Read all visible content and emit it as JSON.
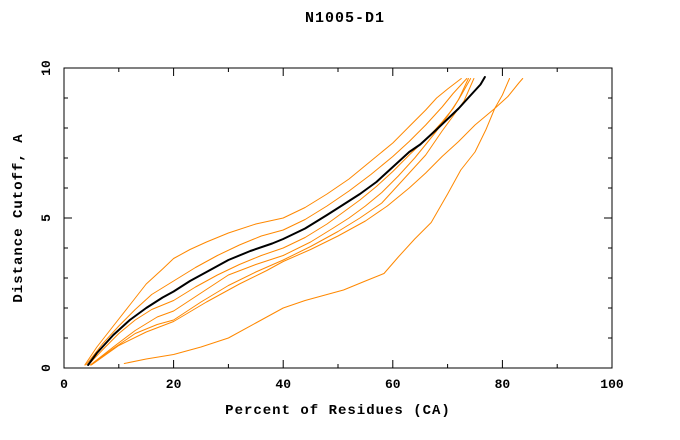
{
  "chart_data": {
    "type": "line",
    "title": "N1005-D1",
    "xlabel": "Percent of Residues (CA)",
    "ylabel": "Distance Cutoff, A",
    "xlim": [
      0,
      100
    ],
    "ylim": [
      0,
      10
    ],
    "x_major_ticks": [
      0,
      20,
      40,
      60,
      80,
      100
    ],
    "x_minor_ticks": [
      10,
      30,
      50,
      70,
      90
    ],
    "y_major_ticks": [
      0,
      5,
      10
    ],
    "y_minor_ticks": [
      1,
      2,
      3,
      4,
      6,
      7,
      8,
      9
    ],
    "grid": false,
    "legend": "none",
    "colors": {
      "background": "#ffffff",
      "axis": "#000000",
      "model_line": "#ff8800",
      "highlight_line": "#000000"
    },
    "series": [
      {
        "name": "orange-model-1-top",
        "color_role": "model_line",
        "stroke_width": 1,
        "points": [
          [
            3.8,
            0.1
          ],
          [
            6,
            0.7
          ],
          [
            9,
            1.4
          ],
          [
            12,
            2.1
          ],
          [
            15,
            2.8
          ],
          [
            18,
            3.3
          ],
          [
            20,
            3.65
          ],
          [
            23,
            3.95
          ],
          [
            26,
            4.2
          ],
          [
            30,
            4.5
          ],
          [
            35,
            4.8
          ],
          [
            40,
            5.0
          ],
          [
            44,
            5.35
          ],
          [
            48,
            5.8
          ],
          [
            52,
            6.3
          ],
          [
            56,
            6.9
          ],
          [
            60,
            7.5
          ],
          [
            63,
            8.05
          ],
          [
            66,
            8.6
          ],
          [
            68,
            9.0
          ],
          [
            70,
            9.3
          ],
          [
            72.5,
            9.65
          ]
        ]
      },
      {
        "name": "orange-model-2",
        "color_role": "model_line",
        "stroke_width": 1,
        "points": [
          [
            4,
            0.1
          ],
          [
            7,
            0.8
          ],
          [
            10,
            1.4
          ],
          [
            13,
            1.95
          ],
          [
            16,
            2.45
          ],
          [
            20,
            2.9
          ],
          [
            24,
            3.35
          ],
          [
            28,
            3.75
          ],
          [
            32,
            4.1
          ],
          [
            36,
            4.4
          ],
          [
            40,
            4.6
          ],
          [
            44,
            4.95
          ],
          [
            48,
            5.4
          ],
          [
            52,
            5.9
          ],
          [
            56,
            6.45
          ],
          [
            60,
            7.05
          ],
          [
            63,
            7.55
          ],
          [
            66,
            8.1
          ],
          [
            69,
            8.7
          ],
          [
            71,
            9.15
          ],
          [
            73.5,
            9.65
          ]
        ]
      },
      {
        "name": "orange-model-3-hugs-black",
        "color_role": "model_line",
        "stroke_width": 1,
        "points": [
          [
            4.4,
            0.1
          ],
          [
            7,
            0.6
          ],
          [
            10,
            1.15
          ],
          [
            13,
            1.6
          ],
          [
            16,
            1.95
          ],
          [
            20,
            2.25
          ],
          [
            24,
            2.7
          ],
          [
            28,
            3.1
          ],
          [
            32,
            3.45
          ],
          [
            36,
            3.75
          ],
          [
            40,
            4.0
          ],
          [
            44,
            4.35
          ],
          [
            48,
            4.8
          ],
          [
            51,
            5.2
          ],
          [
            54,
            5.6
          ],
          [
            57,
            6.05
          ],
          [
            60,
            6.55
          ],
          [
            63,
            7.1
          ],
          [
            65,
            7.45
          ],
          [
            67,
            7.8
          ],
          [
            69,
            8.2
          ],
          [
            71,
            8.65
          ],
          [
            72.5,
            9.1
          ],
          [
            74.2,
            9.65
          ]
        ]
      },
      {
        "name": "orange-model-4",
        "color_role": "model_line",
        "stroke_width": 1,
        "points": [
          [
            4.8,
            0.1
          ],
          [
            9,
            0.7
          ],
          [
            13,
            1.25
          ],
          [
            17,
            1.7
          ],
          [
            20,
            1.9
          ],
          [
            25,
            2.5
          ],
          [
            30,
            3.1
          ],
          [
            35,
            3.45
          ],
          [
            40,
            3.75
          ],
          [
            45,
            4.2
          ],
          [
            49,
            4.65
          ],
          [
            52,
            5.0
          ],
          [
            55,
            5.4
          ],
          [
            58,
            5.85
          ],
          [
            61,
            6.4
          ],
          [
            64,
            7.0
          ],
          [
            66,
            7.45
          ],
          [
            68,
            7.9
          ],
          [
            70,
            8.4
          ],
          [
            72,
            8.95
          ],
          [
            73.8,
            9.65
          ]
        ]
      },
      {
        "name": "orange-model-5",
        "color_role": "model_line",
        "stroke_width": 1,
        "points": [
          [
            4.8,
            0.1
          ],
          [
            9,
            0.65
          ],
          [
            13,
            1.15
          ],
          [
            17,
            1.45
          ],
          [
            20,
            1.6
          ],
          [
            25,
            2.2
          ],
          [
            30,
            2.75
          ],
          [
            35,
            3.2
          ],
          [
            40,
            3.6
          ],
          [
            45,
            4.05
          ],
          [
            50,
            4.55
          ],
          [
            54,
            5.0
          ],
          [
            58,
            5.5
          ],
          [
            62,
            6.3
          ],
          [
            66,
            7.1
          ],
          [
            69,
            7.9
          ],
          [
            71,
            8.4
          ],
          [
            73,
            8.9
          ],
          [
            74.8,
            9.65
          ]
        ]
      },
      {
        "name": "orange-model-6-wide-right",
        "color_role": "model_line",
        "stroke_width": 1,
        "points": [
          [
            5,
            0.1
          ],
          [
            10,
            0.75
          ],
          [
            15,
            1.2
          ],
          [
            20,
            1.55
          ],
          [
            26,
            2.2
          ],
          [
            32,
            2.8
          ],
          [
            37,
            3.25
          ],
          [
            40,
            3.55
          ],
          [
            45,
            3.95
          ],
          [
            50,
            4.4
          ],
          [
            55,
            4.9
          ],
          [
            59,
            5.4
          ],
          [
            63,
            6.0
          ],
          [
            66,
            6.5
          ],
          [
            69,
            7.05
          ],
          [
            72,
            7.55
          ],
          [
            75,
            8.1
          ],
          [
            78.6,
            8.65
          ],
          [
            81,
            9.05
          ],
          [
            83,
            9.5
          ],
          [
            83.7,
            9.65
          ]
        ]
      },
      {
        "name": "orange-model-7-low-outlier",
        "color_role": "model_line",
        "stroke_width": 1,
        "points": [
          [
            11,
            0.15
          ],
          [
            15,
            0.3
          ],
          [
            20,
            0.45
          ],
          [
            25,
            0.7
          ],
          [
            30,
            1.0
          ],
          [
            35,
            1.5
          ],
          [
            40,
            2.0
          ],
          [
            44,
            2.25
          ],
          [
            48,
            2.45
          ],
          [
            51,
            2.6
          ],
          [
            55,
            2.9
          ],
          [
            58.4,
            3.15
          ],
          [
            61,
            3.7
          ],
          [
            64,
            4.3
          ],
          [
            67,
            4.85
          ],
          [
            70,
            5.8
          ],
          [
            72.4,
            6.6
          ],
          [
            75,
            7.2
          ],
          [
            77,
            7.95
          ],
          [
            78.6,
            8.65
          ],
          [
            80,
            9.1
          ],
          [
            81.3,
            9.65
          ]
        ]
      },
      {
        "name": "bold-black-model",
        "color_role": "highlight_line",
        "stroke_width": 2,
        "points": [
          [
            4.4,
            0.1
          ],
          [
            6,
            0.5
          ],
          [
            9,
            1.1
          ],
          [
            12,
            1.6
          ],
          [
            15,
            2.0
          ],
          [
            18,
            2.35
          ],
          [
            20,
            2.55
          ],
          [
            23,
            2.9
          ],
          [
            26,
            3.2
          ],
          [
            30,
            3.6
          ],
          [
            34,
            3.9
          ],
          [
            38,
            4.15
          ],
          [
            40,
            4.3
          ],
          [
            44,
            4.65
          ],
          [
            48,
            5.1
          ],
          [
            51,
            5.45
          ],
          [
            54,
            5.8
          ],
          [
            57,
            6.2
          ],
          [
            60,
            6.7
          ],
          [
            63,
            7.2
          ],
          [
            65,
            7.45
          ],
          [
            68,
            7.95
          ],
          [
            70,
            8.3
          ],
          [
            72,
            8.65
          ],
          [
            74,
            9.05
          ],
          [
            76,
            9.45
          ],
          [
            76.8,
            9.7
          ]
        ]
      }
    ]
  }
}
